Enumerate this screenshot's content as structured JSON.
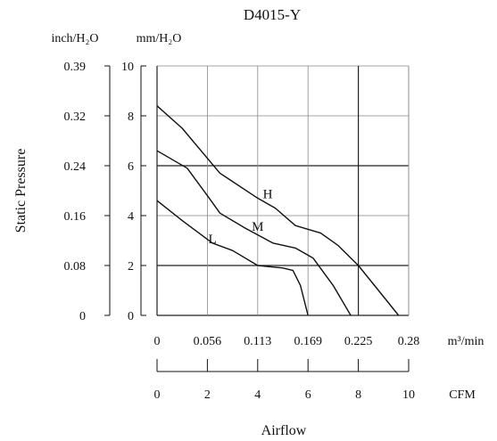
{
  "chart_data": {
    "type": "line",
    "title": "D4015-Y",
    "ylabel": "Static Pressure",
    "xlabel": "Airflow",
    "left_axis": {
      "unit": "inch/H₂O",
      "ticks": [
        "0.39",
        "0.32",
        "0.24",
        "0.16",
        "0.08",
        "0"
      ]
    },
    "primary_axis": {
      "unit": "mm/H₂O",
      "range": [
        0,
        10
      ],
      "ticks": [
        "10",
        "8",
        "6",
        "4",
        "2",
        "0"
      ]
    },
    "x_axis_m3min": {
      "unit": "m³/min",
      "range": [
        0,
        0.28
      ],
      "ticks": [
        "0",
        "0.056",
        "0.113",
        "0.169",
        "0.225",
        "0.28"
      ]
    },
    "x_axis_cfm": {
      "unit": "CFM",
      "range": [
        0,
        10
      ],
      "ticks": [
        "0",
        "2",
        "4",
        "6",
        "8",
        "10"
      ]
    },
    "grid": true,
    "series": [
      {
        "name": "H",
        "points": [
          [
            0,
            8.4
          ],
          [
            1.0,
            7.5
          ],
          [
            2.5,
            5.7
          ],
          [
            4.0,
            4.7
          ],
          [
            4.7,
            4.3
          ],
          [
            5.5,
            3.6
          ],
          [
            6.5,
            3.3
          ],
          [
            7.2,
            2.8
          ],
          [
            8.0,
            2.0
          ],
          [
            8.8,
            1.0
          ],
          [
            9.6,
            0.0
          ]
        ]
      },
      {
        "name": "M",
        "points": [
          [
            0,
            6.6
          ],
          [
            1.2,
            5.9
          ],
          [
            2.0,
            4.8
          ],
          [
            2.5,
            4.1
          ],
          [
            3.5,
            3.5
          ],
          [
            4.6,
            2.9
          ],
          [
            5.5,
            2.7
          ],
          [
            6.2,
            2.3
          ],
          [
            7.0,
            1.2
          ],
          [
            7.7,
            0.0
          ]
        ]
      },
      {
        "name": "L",
        "points": [
          [
            0,
            4.6
          ],
          [
            1.0,
            3.8
          ],
          [
            2.2,
            2.9
          ],
          [
            3.0,
            2.6
          ],
          [
            4.0,
            2.0
          ],
          [
            5.0,
            1.9
          ],
          [
            5.4,
            1.8
          ],
          [
            5.7,
            1.2
          ],
          [
            6.0,
            0.0
          ]
        ]
      }
    ],
    "curve_label_positions": {
      "H": [
        4.4,
        4.7
      ],
      "M": [
        4.0,
        3.4
      ],
      "L": [
        2.2,
        2.9
      ]
    }
  }
}
